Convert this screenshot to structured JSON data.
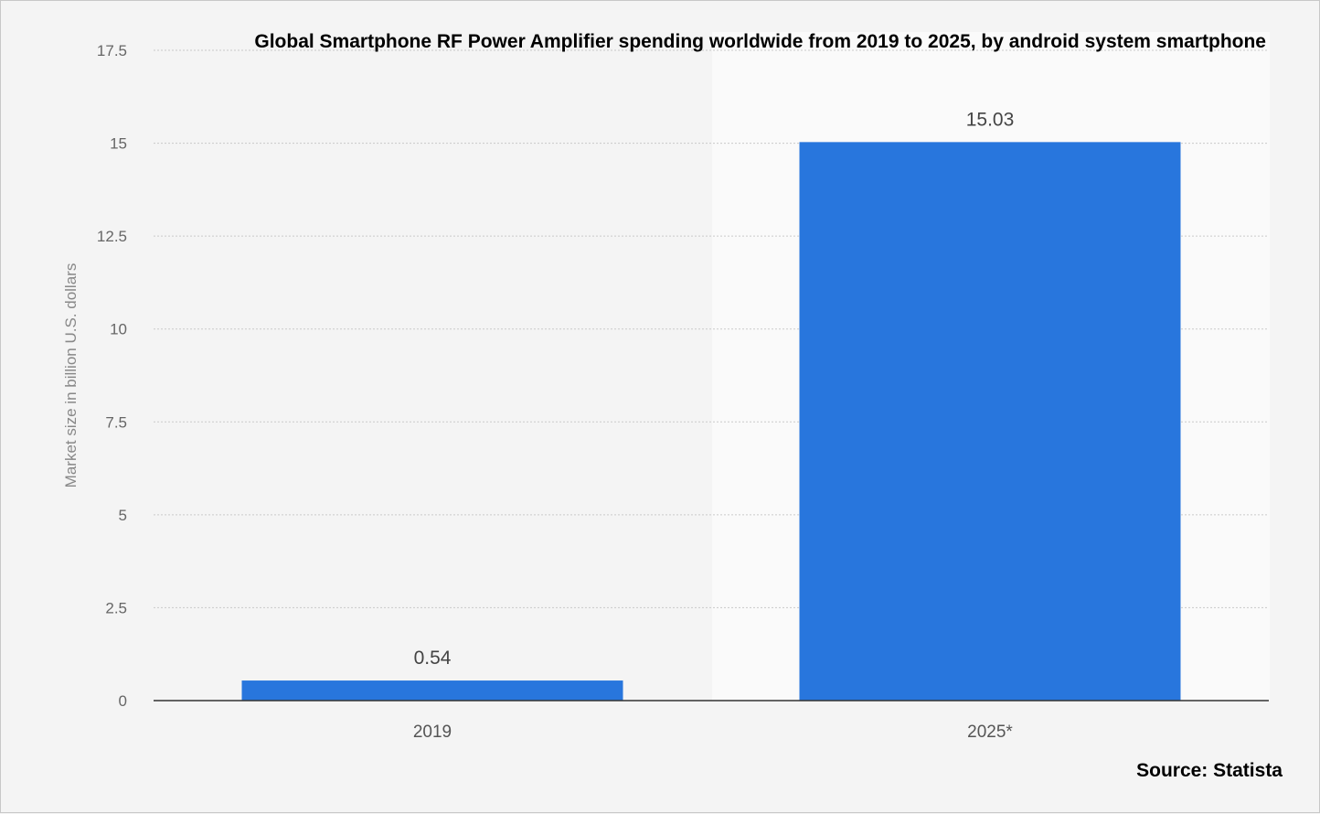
{
  "chart_data": {
    "type": "bar",
    "title": "Global Smartphone RF Power Amplifier spending worldwide from 2019 to 2025, by android system smartphone",
    "categories": [
      "2019",
      "2025*"
    ],
    "values": [
      0.54,
      15.03
    ],
    "value_labels": [
      "0.54",
      "15.03"
    ],
    "xlabel": "",
    "ylabel": "Market size in billion U.S. dollars",
    "ylim": [
      0,
      17.5
    ],
    "yticks": [
      0,
      2.5,
      5,
      7.5,
      10,
      12.5,
      15,
      17.5
    ],
    "ytick_labels": [
      "0",
      "2.5",
      "5",
      "7.5",
      "10",
      "12.5",
      "15",
      "17.5"
    ],
    "grid": true,
    "legend": "none",
    "bar_color": "#2876dd",
    "grid_color": "#c9c9c9",
    "highlight_band_color": "#fafafa"
  },
  "source": "Source: Statista"
}
